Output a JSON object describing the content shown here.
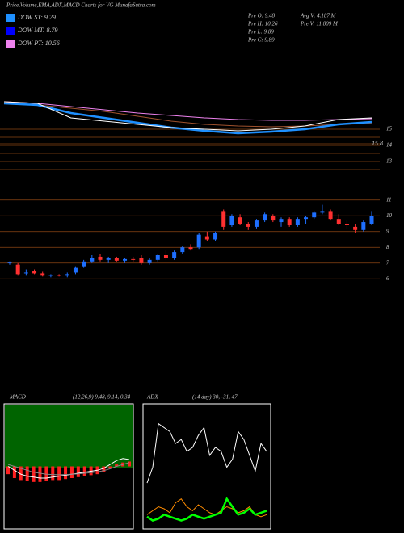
{
  "header": {
    "title": "Price,Volume,EMA,ADX,MACD Charts for VG MunafaSutra.com"
  },
  "legend": [
    {
      "label": "DOW ST: 9.29",
      "color": "#1e90ff"
    },
    {
      "label": "DOW MT: 8.79",
      "color": "#0000ff"
    },
    {
      "label": "DOW PT: 10.56",
      "color": "#ee82ee"
    }
  ],
  "info": [
    "Pre O: 9.48",
    "Pre H: 10.26",
    "Pre L: 9.89",
    "Pre C: 9.89",
    "Avg V: 4.187 M",
    "Pre V: 11.809 M"
  ],
  "chart_data": [
    {
      "type": "line",
      "annotation": "15.8",
      "ylim": [
        12.5,
        17
      ],
      "yticks": [
        15,
        14,
        13
      ],
      "series": [
        {
          "color": "#a0522d",
          "values": [
            16.6,
            16.5,
            16.3,
            16.1,
            15.8,
            15.5,
            15.3,
            15.2,
            15.15,
            15.2,
            15.3,
            15.35
          ]
        },
        {
          "color": "#ee82ee",
          "values": [
            16.7,
            16.6,
            16.4,
            16.2,
            16.0,
            15.85,
            15.7,
            15.6,
            15.55,
            15.55,
            15.6,
            15.65
          ]
        },
        {
          "color": "#1e90ff",
          "values": [
            16.6,
            16.5,
            16.0,
            15.7,
            15.4,
            15.1,
            14.9,
            14.75,
            14.85,
            15.0,
            15.3,
            15.45
          ]
        },
        {
          "color": "#ffffff",
          "values": [
            16.7,
            16.6,
            15.7,
            15.5,
            15.3,
            15.1,
            15.0,
            14.9,
            15.0,
            15.2,
            15.6,
            15.7
          ]
        }
      ]
    },
    {
      "type": "candlestick",
      "ylim": [
        5.5,
        11.5
      ],
      "yticks": [
        11,
        10,
        9,
        8,
        7,
        6
      ],
      "up_color": "#1e6fff",
      "down_color": "#ff3030",
      "open": [
        7.0,
        6.9,
        6.4,
        6.5,
        6.35,
        6.2,
        6.25,
        6.2,
        6.4,
        6.8,
        7.1,
        7.4,
        7.2,
        7.3,
        7.15,
        7.25,
        7.3,
        7.0,
        7.2,
        7.5,
        7.3,
        7.7,
        8.0,
        8.0,
        8.7,
        8.5,
        10.3,
        9.4,
        9.9,
        9.5,
        9.3,
        9.7,
        10.0,
        9.6,
        9.8,
        9.4,
        9.8,
        9.9,
        10.2,
        10.3,
        9.8,
        9.5,
        9.3,
        9.1,
        9.5
      ],
      "high": [
        7.1,
        7.0,
        6.6,
        6.6,
        6.45,
        6.3,
        6.3,
        6.4,
        6.8,
        7.2,
        7.5,
        7.6,
        7.4,
        7.4,
        7.3,
        7.4,
        7.5,
        7.3,
        7.6,
        7.8,
        7.8,
        8.1,
        8.2,
        8.9,
        9.0,
        9.0,
        10.4,
        10.1,
        10.1,
        9.6,
        9.8,
        10.2,
        10.1,
        9.9,
        9.9,
        9.9,
        10.0,
        10.3,
        10.7,
        10.4,
        10.1,
        9.7,
        9.5,
        9.7,
        10.3
      ],
      "low": [
        6.9,
        6.2,
        6.2,
        6.3,
        6.15,
        6.1,
        6.15,
        6.1,
        6.3,
        6.7,
        7.0,
        7.1,
        7.0,
        7.1,
        7.0,
        7.1,
        6.9,
        6.9,
        7.1,
        7.2,
        7.2,
        7.6,
        7.8,
        7.9,
        8.4,
        8.4,
        9.1,
        9.3,
        9.4,
        9.1,
        9.2,
        9.6,
        9.6,
        9.3,
        9.3,
        9.3,
        9.5,
        9.8,
        10.1,
        9.7,
        9.4,
        9.2,
        8.9,
        9.0,
        9.4
      ],
      "close": [
        7.05,
        6.3,
        6.4,
        6.35,
        6.2,
        6.25,
        6.2,
        6.3,
        6.7,
        7.1,
        7.3,
        7.2,
        7.3,
        7.15,
        7.25,
        7.2,
        7.0,
        7.2,
        7.5,
        7.3,
        7.7,
        8.0,
        7.9,
        8.8,
        8.5,
        8.9,
        9.3,
        10.0,
        9.5,
        9.3,
        9.7,
        10.1,
        9.7,
        9.8,
        9.4,
        9.8,
        9.9,
        10.2,
        10.3,
        9.8,
        9.5,
        9.4,
        9.1,
        9.6,
        10.0
      ]
    },
    {
      "type": "macd",
      "title": "MACD",
      "subtitle": "(12,26,9) 9.48, 9.14, 0.34",
      "ylim": [
        -3,
        3
      ],
      "series": [
        {
          "style": "bar",
          "color": "#ff2020",
          "values": [
            -0.4,
            -0.6,
            -0.7,
            -0.75,
            -0.8,
            -0.8,
            -0.75,
            -0.7,
            -0.7,
            -0.65,
            -0.6,
            -0.55,
            -0.5,
            -0.45,
            -0.4,
            -0.3,
            -0.1,
            0.1,
            0.2,
            0.25
          ]
        },
        {
          "style": "line",
          "color": "#ffffff",
          "values": [
            0.0,
            -0.2,
            -0.4,
            -0.5,
            -0.55,
            -0.6,
            -0.6,
            -0.55,
            -0.5,
            -0.45,
            -0.4,
            -0.35,
            -0.3,
            -0.25,
            -0.2,
            -0.1,
            0.1,
            0.3,
            0.4,
            0.35
          ]
        },
        {
          "style": "line",
          "color": "#888888",
          "values": [
            0.1,
            0.0,
            -0.1,
            -0.2,
            -0.3,
            -0.35,
            -0.4,
            -0.42,
            -0.43,
            -0.42,
            -0.4,
            -0.38,
            -0.35,
            -0.32,
            -0.28,
            -0.22,
            -0.12,
            0.0,
            0.1,
            0.2
          ]
        }
      ]
    },
    {
      "type": "adx",
      "title": "ADX",
      "subtitle": "(14 day) 30, -31, 47",
      "ylim": [
        0,
        60
      ],
      "series": [
        {
          "color": "#ffffff",
          "values": [
            22,
            30,
            52,
            50,
            48,
            42,
            44,
            38,
            40,
            46,
            50,
            36,
            40,
            38,
            30,
            34,
            48,
            44,
            36,
            28,
            42,
            38
          ]
        },
        {
          "color": "#ff8c00",
          "values": [
            6,
            8,
            10,
            9,
            7,
            12,
            14,
            10,
            8,
            11,
            9,
            7,
            6,
            8,
            10,
            9,
            7,
            8,
            10,
            6,
            5,
            6
          ]
        },
        {
          "color": "#00ff00",
          "values": [
            5,
            3,
            4,
            6,
            5,
            4,
            3,
            4,
            6,
            5,
            4,
            5,
            6,
            7,
            14,
            10,
            6,
            7,
            9,
            6,
            7,
            8
          ]
        }
      ]
    }
  ]
}
